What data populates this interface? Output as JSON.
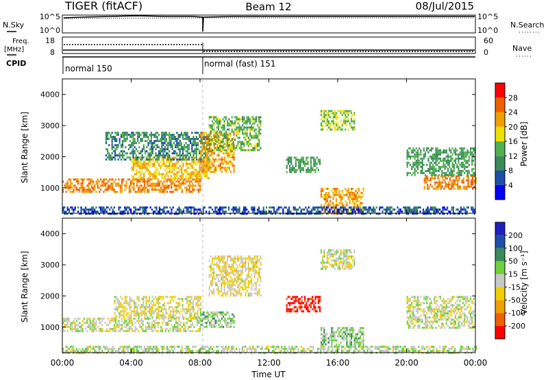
{
  "header": {
    "title": "TIGER (fitACF)",
    "beam": "Beam 12",
    "date": "08/Jul/2015"
  },
  "side_labels": {
    "nsky": "N.Sky",
    "nsearch": "N.Search",
    "freq": "Freq.",
    "freq_unit": "[MHz]",
    "nave": "Nave",
    "cpid": "CPID"
  },
  "noise_panel": {
    "left_ticks": [
      "10^5",
      "10^0"
    ],
    "right_ticks": [
      "10^5",
      "10^0"
    ]
  },
  "freq_panel": {
    "left_ticks": [
      "18",
      "8"
    ],
    "right_ticks": [
      "60",
      "0"
    ]
  },
  "cpid_panel": {
    "segments": [
      {
        "label": "normal 150",
        "start_hour": 0,
        "end_hour": 8
      },
      {
        "label": "normal (fast) 151",
        "start_hour": 8,
        "end_hour": 24
      }
    ]
  },
  "colors": {
    "power_scale": [
      "#0000ff",
      "#1e4fa8",
      "#3a8a5a",
      "#50b050",
      "#f0e000",
      "#f0a000",
      "#f06000",
      "#ff0000"
    ],
    "velocity_scale": [
      "#ff0000",
      "#f06000",
      "#f0a000",
      "#f0d000",
      "#c8c8c8",
      "#70d040",
      "#3a8a5a",
      "#1e4fa8",
      "#2020c0"
    ]
  },
  "chart_data": [
    {
      "type": "heatmap",
      "name": "power",
      "ylabel": "Slant Range [km]",
      "xlim": [
        0,
        24
      ],
      "ylim": [
        180,
        4500
      ],
      "yticks": [
        "1000",
        "2000",
        "3000",
        "4000"
      ],
      "colorbar_label": "Power [dB]",
      "colorbar_ticks": [
        "4",
        "8",
        "12",
        "16",
        "20",
        "24",
        "28"
      ],
      "zlim": [
        0,
        32
      ],
      "regions": [
        {
          "x0": 0.0,
          "x1": 8.0,
          "y0": 900,
          "y1": 1300,
          "level": 24
        },
        {
          "x0": 4.0,
          "x1": 8.5,
          "y0": 1300,
          "y1": 2000,
          "level": 20
        },
        {
          "x0": 2.5,
          "x1": 8.5,
          "y0": 1900,
          "y1": 2800,
          "level": 10
        },
        {
          "x0": 8.0,
          "x1": 10.0,
          "y0": 1500,
          "y1": 2800,
          "level": 22
        },
        {
          "x0": 8.5,
          "x1": 11.5,
          "y0": 2200,
          "y1": 3300,
          "level": 14
        },
        {
          "x0": 13.0,
          "x1": 15.0,
          "y0": 1500,
          "y1": 2000,
          "level": 12
        },
        {
          "x0": 15.0,
          "x1": 17.0,
          "y0": 2900,
          "y1": 3500,
          "level": 16
        },
        {
          "x0": 15.0,
          "x1": 17.5,
          "y0": 200,
          "y1": 1000,
          "level": 22
        },
        {
          "x0": 21.0,
          "x1": 24.0,
          "y0": 1000,
          "y1": 1400,
          "level": 24
        },
        {
          "x0": 20.0,
          "x1": 24.0,
          "y0": 1400,
          "y1": 2300,
          "level": 12
        },
        {
          "x0": 0.0,
          "x1": 24.0,
          "y0": 180,
          "y1": 400,
          "level": 6
        }
      ]
    },
    {
      "type": "heatmap",
      "name": "velocity",
      "xlabel": "Time UT",
      "ylabel": "Slant Range [km]",
      "xlim": [
        0,
        24
      ],
      "ylim": [
        180,
        4500
      ],
      "xticks": [
        "00:00",
        "04:00",
        "08:00",
        "12:00",
        "16:00",
        "20:00",
        "00:00"
      ],
      "yticks": [
        "1000",
        "2000",
        "3000",
        "4000"
      ],
      "colorbar_label": "Velocity [m s⁻¹]",
      "colorbar_ticks": [
        "200",
        "100",
        "50",
        "15",
        "-15",
        "-50",
        "-100",
        "-200"
      ],
      "zlim": [
        -250,
        250
      ],
      "regions": [
        {
          "x0": 0.0,
          "x1": 8.0,
          "y0": 900,
          "y1": 1300,
          "level": 0
        },
        {
          "x0": 3.0,
          "x1": 8.0,
          "y0": 1300,
          "y1": 2000,
          "level": -20
        },
        {
          "x0": 8.0,
          "x1": 10.0,
          "y0": 1000,
          "y1": 1500,
          "level": 40
        },
        {
          "x0": 8.5,
          "x1": 11.5,
          "y0": 2000,
          "y1": 3300,
          "level": -30
        },
        {
          "x0": 13.0,
          "x1": 15.0,
          "y0": 1500,
          "y1": 2000,
          "level": -220
        },
        {
          "x0": 15.0,
          "x1": 17.0,
          "y0": 2900,
          "y1": 3500,
          "level": 0
        },
        {
          "x0": 15.0,
          "x1": 17.5,
          "y0": 400,
          "y1": 1000,
          "level": 40
        },
        {
          "x0": 20.0,
          "x1": 24.0,
          "y0": 1000,
          "y1": 2000,
          "level": 0
        },
        {
          "x0": 0.0,
          "x1": 24.0,
          "y0": 180,
          "y1": 400,
          "level": 20
        }
      ]
    }
  ]
}
